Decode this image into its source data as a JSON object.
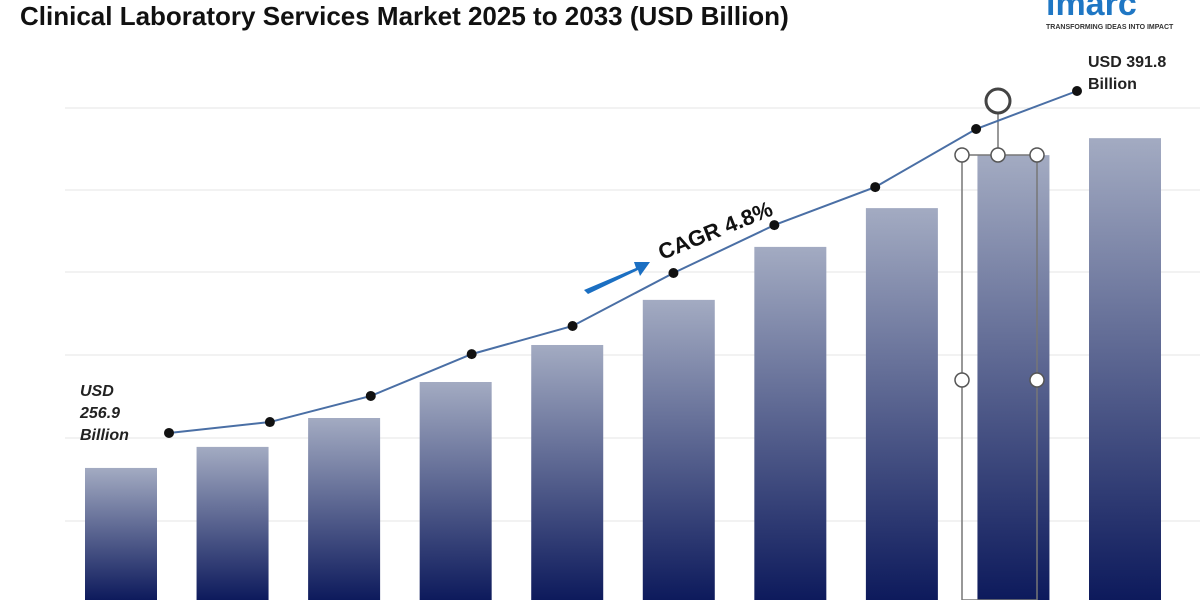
{
  "chart_data": {
    "type": "bar_line",
    "title": "Clinical Laboratory Services Market 2025 to 2033 (USD Billion)",
    "logo": "imarc",
    "tagline": "TRANSFORMING IDEAS INTO IMPACT",
    "start_label": [
      "USD",
      "256.9",
      "Billion"
    ],
    "end_label": [
      "USD 391.8",
      "Billion"
    ],
    "cagr_label": "CAGR  4.8%",
    "categories": [
      null,
      null,
      null,
      null,
      null,
      null,
      null,
      null,
      null,
      null
    ],
    "ylim": [
      191,
      427.7
    ],
    "series": [
      {
        "type": "bar",
        "color": "#0d1a5c",
        "values": [
          243.1,
          251.4,
          262.8,
          277.0,
          291.6,
          309.4,
          330.3,
          345.6,
          366.5,
          373.2
        ]
      },
      {
        "type": "line",
        "color": "#4a6fa5",
        "values": [
          256.9,
          261.2,
          271.5,
          288.0,
          299.1,
          320.0,
          338.9,
          353.9,
          376.8,
          391.8
        ]
      }
    ]
  }
}
